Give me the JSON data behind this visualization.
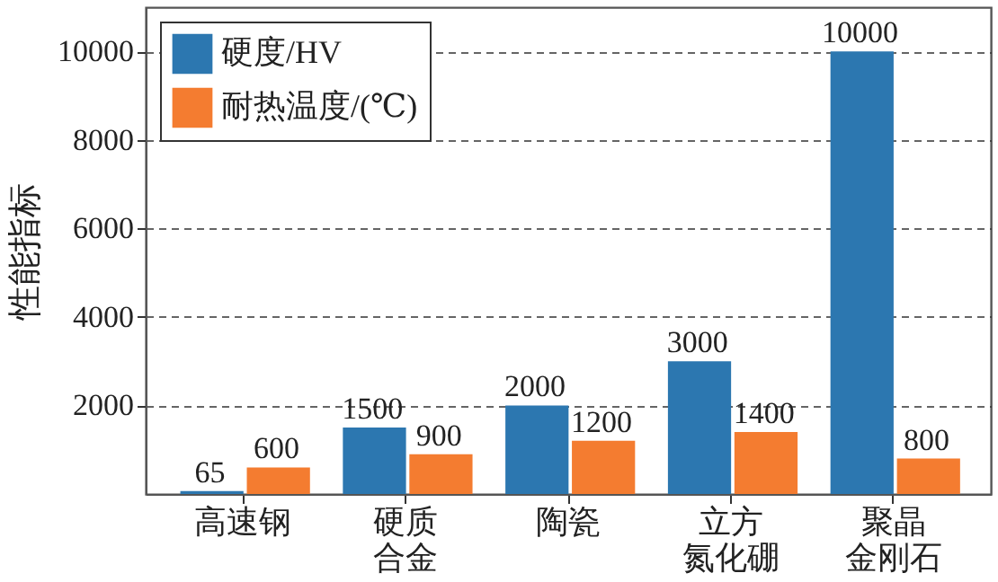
{
  "chart_data": {
    "type": "bar",
    "ylabel": "性能指标",
    "categories": [
      "高速钢",
      "硬质合金",
      "陶瓷",
      "立方氮化硼",
      "聚晶金刚石"
    ],
    "series": [
      {
        "name": "硬度/HV",
        "color": "#2c77b0",
        "values": [
          65,
          1500,
          2000,
          3000,
          10000
        ]
      },
      {
        "name": "耐热温度/(℃)",
        "color": "#f47c30",
        "values": [
          600,
          900,
          1200,
          1400,
          800
        ]
      }
    ],
    "ylim": [
      0,
      11000
    ],
    "yticks": [
      2000,
      4000,
      6000,
      8000,
      10000
    ],
    "grid": "y",
    "line_style": "dashed",
    "legend": "top left",
    "data_labels": true
  }
}
